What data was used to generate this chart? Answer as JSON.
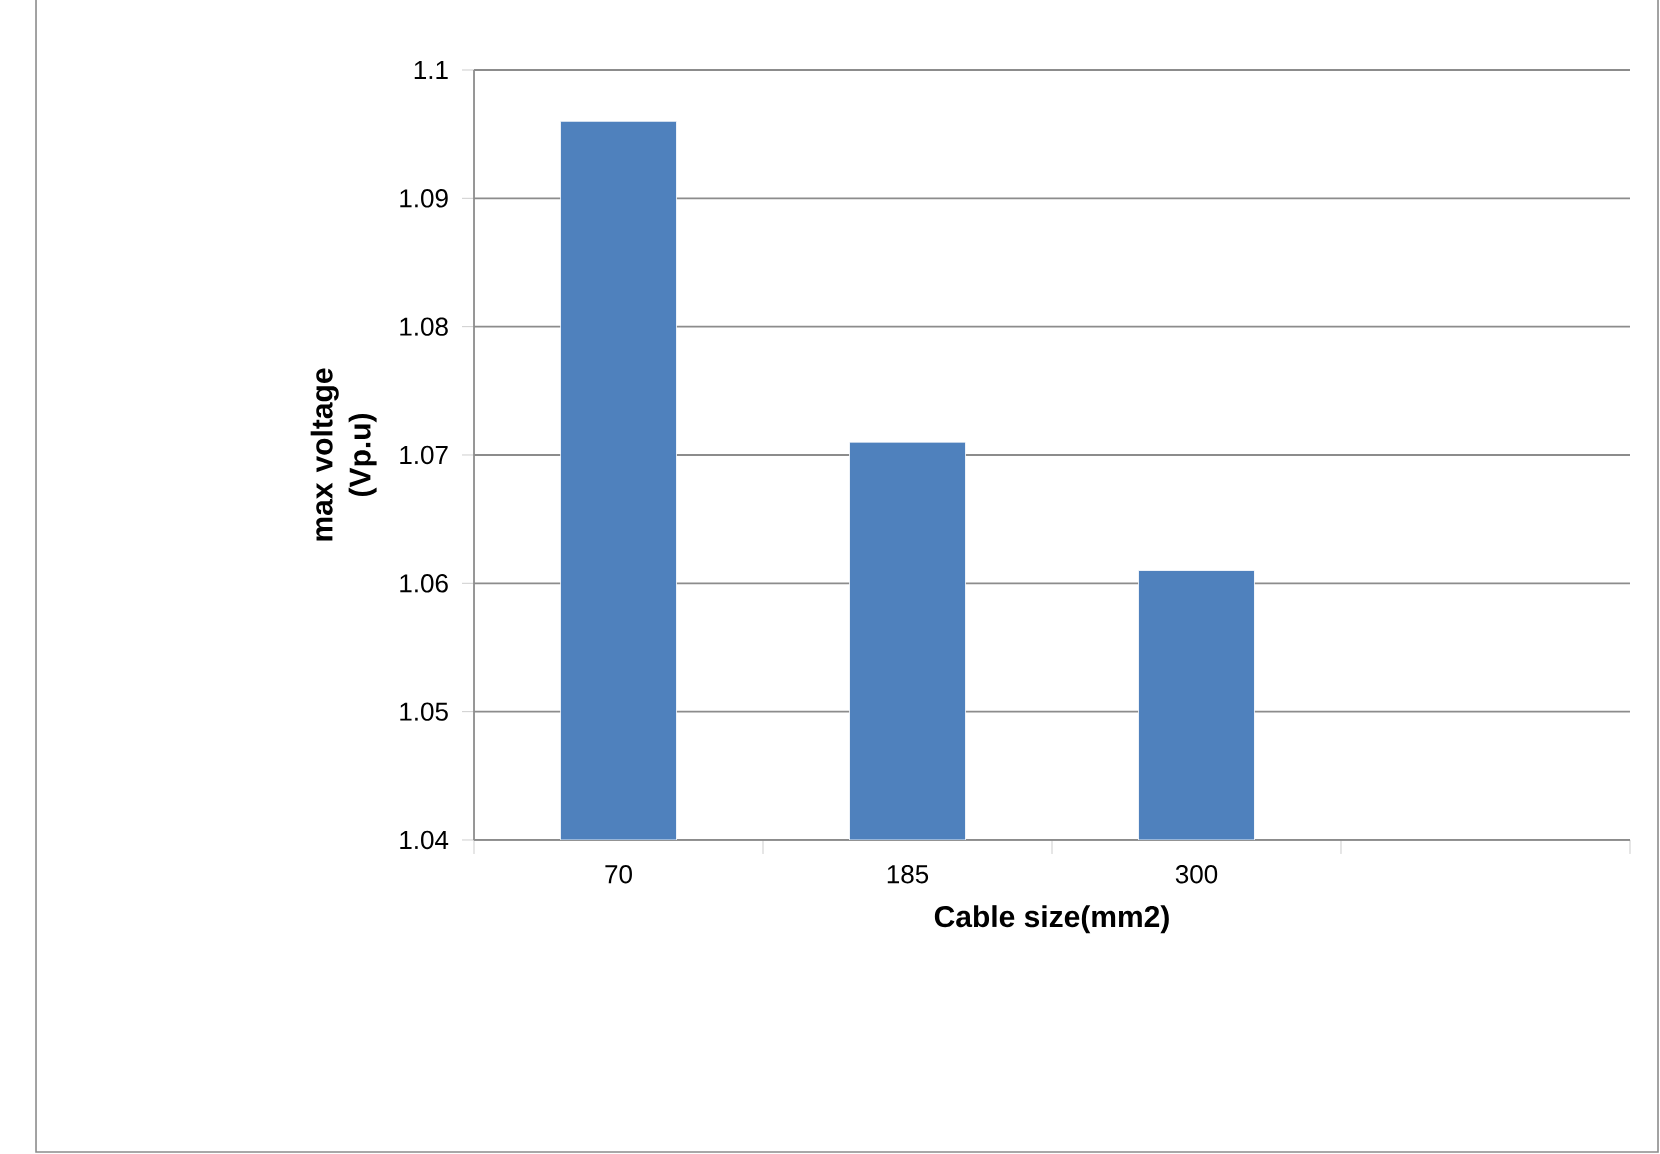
{
  "chart_data": {
    "type": "bar",
    "xlabel": "Cable size(mm2)",
    "ylabel": "max voltage (Vp.u)",
    "categories": [
      "70",
      "185",
      "300",
      null
    ],
    "values": [
      1.096,
      1.071,
      1.061,
      null
    ],
    "color": "#4f81bd",
    "ylim": [
      1.04,
      1.1
    ],
    "yticks": [
      1.04,
      1.05,
      1.06,
      1.07,
      1.08,
      1.09,
      1.1
    ],
    "grid": "y"
  }
}
